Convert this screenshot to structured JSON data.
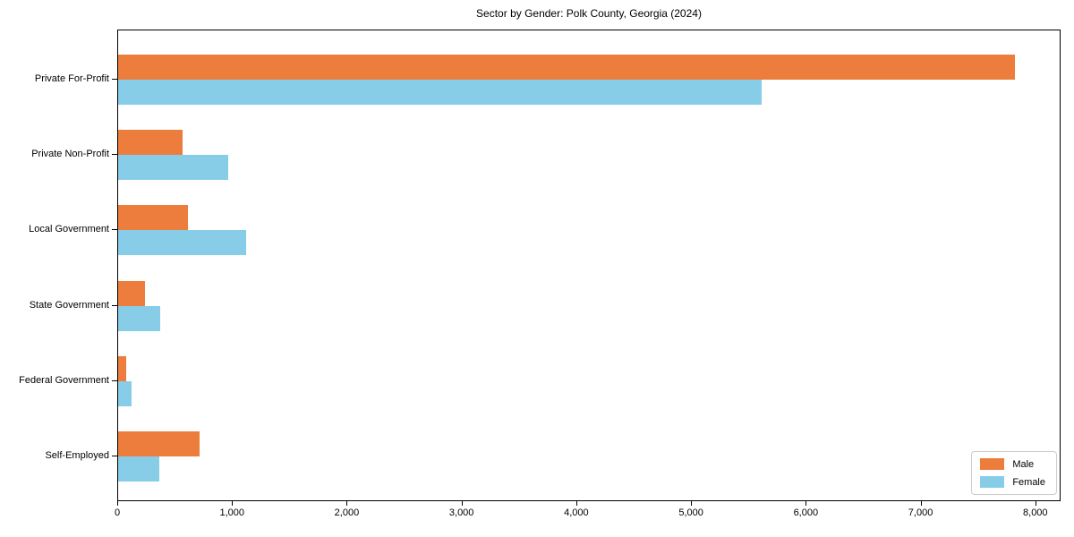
{
  "title": "Sector by Gender: Polk County, Georgia (2024)",
  "chart_data": {
    "type": "bar",
    "orientation": "horizontal",
    "title": "Sector by Gender: Polk County, Georgia (2024)",
    "categories": [
      "Private For-Profit",
      "Private Non-Profit",
      "Local Government",
      "State Government",
      "Federal Government",
      "Self-Employed"
    ],
    "series": [
      {
        "name": "Male",
        "color": "#EC7D3C",
        "values": [
          7830,
          560,
          610,
          235,
          72,
          710
        ]
      },
      {
        "name": "Female",
        "color": "#87CDE8",
        "values": [
          5615,
          960,
          1120,
          368,
          118,
          360
        ]
      }
    ],
    "xlabel": "",
    "ylabel": "",
    "xlim": [
      0,
      8000
    ],
    "xticks": [
      0,
      1000,
      2000,
      3000,
      4000,
      5000,
      6000,
      7000,
      8000
    ],
    "xtick_labels": [
      "0",
      "1,000",
      "2,000",
      "3,000",
      "4,000",
      "5,000",
      "6,000",
      "7,000",
      "8,000"
    ],
    "legend_position": "lower right",
    "grid": false
  }
}
